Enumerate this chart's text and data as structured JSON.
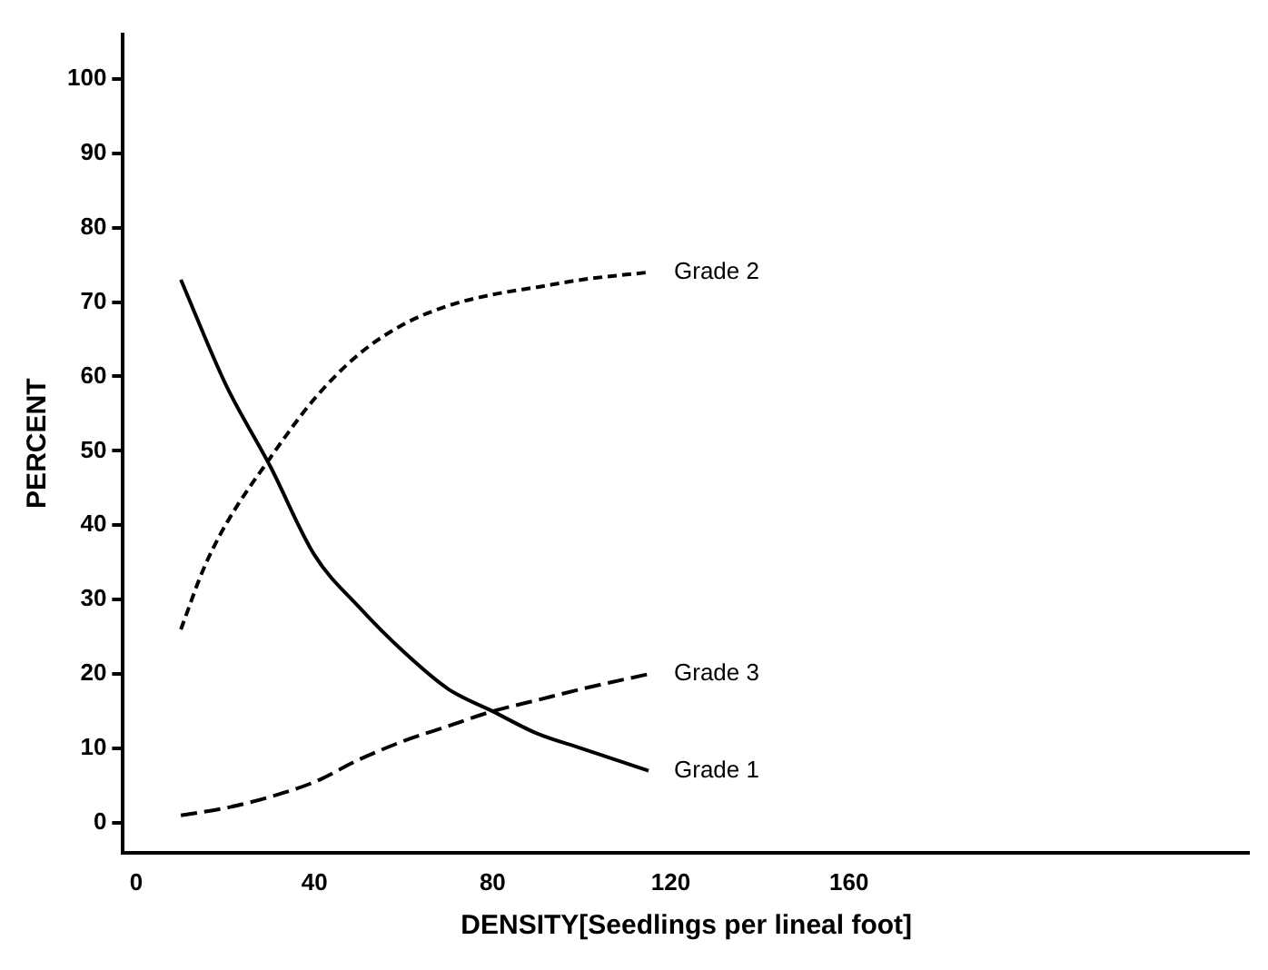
{
  "chart_data": {
    "type": "line",
    "xlabel": "DENSITY[Seedlings per lineal foot]",
    "ylabel": "PERCENT",
    "xlim": [
      -3,
      250
    ],
    "ylim": [
      -4,
      106
    ],
    "xticks": [
      0,
      40,
      80,
      120,
      160
    ],
    "yticks": [
      0,
      10,
      20,
      30,
      40,
      50,
      60,
      70,
      80,
      90,
      100
    ],
    "grid": false,
    "legend": false,
    "marker": "none",
    "series": [
      {
        "name": "Grade 1",
        "color": "#000000",
        "line_style": "solid",
        "x": [
          10,
          20,
          30,
          40,
          50,
          60,
          70,
          80,
          90,
          100,
          115
        ],
        "values": [
          73,
          59,
          48,
          36,
          29,
          23,
          18,
          15,
          12,
          10,
          7
        ]
      },
      {
        "name": "Grade 2",
        "color": "#000000",
        "line_style": "dashed",
        "x": [
          10,
          15,
          20,
          30,
          40,
          50,
          60,
          70,
          80,
          90,
          100,
          115
        ],
        "values": [
          26,
          34,
          40,
          49,
          57,
          63,
          67,
          69.5,
          71,
          72,
          73,
          74
        ]
      },
      {
        "name": "Grade 3",
        "color": "#000000",
        "line_style": "dashed",
        "x": [
          10,
          20,
          30,
          40,
          50,
          60,
          70,
          80,
          90,
          100,
          115
        ],
        "values": [
          1,
          2,
          3.5,
          5.5,
          8.5,
          11,
          13,
          15,
          16.5,
          18,
          20
        ]
      }
    ]
  }
}
